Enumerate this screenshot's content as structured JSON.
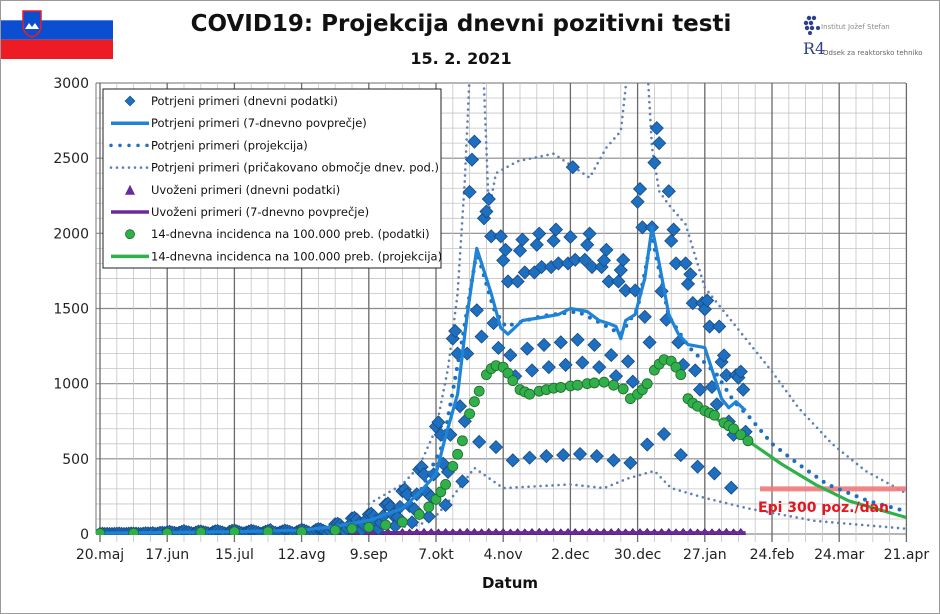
{
  "header": {
    "title": "COVID19: Projekcija dnevni pozitivni testi",
    "subtitle": "15. 2. 2021",
    "logo_institute": "Institut Jožef Stefan",
    "logo_dept_mark": "R4",
    "logo_dept": "Odsek za reaktorsko tehniko"
  },
  "colors": {
    "confirmed": "#1f6fc0",
    "confirmed_edge": "#174a80",
    "avg_line": "#1f83d6",
    "band": "#5f7fb8",
    "imported": "#6a2b9a",
    "incidence": "#2fb04a",
    "incidence_edge": "#1e6a2a",
    "epi_line": "#f07a7a",
    "epi_text": "#e8141e"
  },
  "chart_data": {
    "type": "line",
    "title": "COVID19: Projekcija dnevni pozitivni testi",
    "subtitle": "15. 2. 2021",
    "xlabel": "Datum",
    "ylabel": "",
    "xlim": [
      "2020-05-18",
      "2021-04-21"
    ],
    "ylim": [
      0,
      3000
    ],
    "yticks": [
      "0",
      "500",
      "1000",
      "1500",
      "2000",
      "2500",
      "3000"
    ],
    "xticks": [
      "20.maj",
      "17.jun",
      "15.jul",
      "12.avg",
      "9.sep",
      "7.okt",
      "4.nov",
      "2.dec",
      "30.dec",
      "27.jan",
      "24.feb",
      "24.mar",
      "21.apr"
    ],
    "grid": true,
    "legend_position": "top-left",
    "legend": [
      "Potrjeni primeri (dnevni podatki)",
      "Potrjeni primeri (7-dnevno povprečje)",
      "Potrjeni primeri (projekcija)",
      "Potrjeni primeri (pričakovano območje dnev. pod.)",
      "Uvoženi primeri (dnevni podatki)",
      "Uvoženi primeri (7-dnevno povprečje)",
      "14-dnevna incidenca na 100.000 preb. (podatki)",
      "14-dnevna incidenca na 100.000 preb. (projekcija)"
    ],
    "annotation": {
      "text": "Epi 300 poz./dan",
      "value": 300,
      "from": "2021-02-19",
      "to": "2021-04-21"
    },
    "confirmed_daily": {
      "start": "2020-05-20",
      "values": [
        1,
        2,
        0,
        1,
        0,
        0,
        1,
        2,
        3,
        1,
        0,
        1,
        2,
        4,
        3,
        2,
        1,
        0,
        2,
        5,
        4,
        3,
        6,
        1,
        3,
        8,
        9,
        6,
        12,
        15,
        10,
        8,
        3,
        9,
        14,
        20,
        13,
        11,
        6,
        2,
        10,
        16,
        17,
        12,
        9,
        5,
        1,
        12,
        18,
        20,
        14,
        10,
        4,
        2,
        15,
        21,
        24,
        18,
        12,
        6,
        3,
        10,
        16,
        22,
        17,
        14,
        8,
        2,
        8,
        15,
        20,
        26,
        12,
        9,
        3,
        11,
        17,
        23,
        19,
        14,
        7,
        3,
        13,
        20,
        28,
        24,
        17,
        10,
        4,
        16,
        27,
        33,
        30,
        22,
        14,
        5,
        20,
        38,
        65,
        68,
        60,
        43,
        18,
        38,
        60,
        104,
        108,
        96,
        68,
        28,
        60,
        96,
        130,
        135,
        120,
        85,
        35,
        75,
        120,
        195,
        203,
        180,
        128,
        53,
        113,
        180,
        286,
        297,
        264,
        187,
        77,
        165,
        264,
        429,
        446,
        396,
        281,
        116,
        248,
        396,
        715,
        743,
        660,
        468,
        193,
        413,
        660,
        1300,
        1350,
        1200,
        850,
        350,
        750,
        1200,
        2275,
        2490,
        2610,
        1488,
        613,
        1313,
        2100,
        2145,
        2228,
        1980,
        1403,
        578,
        1238,
        1980,
        1820,
        1890,
        1680,
        1190,
        490,
        1050,
        1680,
        1885,
        1958,
        1740,
        1233,
        508,
        1088,
        1740,
        1924,
        1998,
        1776,
        1258,
        518,
        1110,
        1776,
        1950,
        2025,
        1800,
        1275,
        525,
        1125,
        1800,
        1976,
        2440,
        1824,
        1292,
        532,
        1140,
        1824,
        1924,
        1998,
        1776,
        1258,
        518,
        1110,
        1776,
        1820,
        1890,
        1680,
        1190,
        490,
        1050,
        1680,
        1755,
        1823,
        1620,
        1148,
        473,
        1013,
        1620,
        2210,
        2295,
        2040,
        1445,
        595,
        1275,
        2040,
        2470,
        2700,
        2600,
        1615,
        665,
        1425,
        2280,
        1950,
        2025,
        1800,
        1275,
        525,
        1125,
        1800,
        1664,
        1728,
        1536,
        1088,
        448,
        960,
        1536,
        1495,
        1553,
        1380,
        978,
        403,
        863,
        1380,
        1144,
        1188,
        1056,
        748,
        308,
        660,
        1056,
        1040,
        1080,
        960,
        680
      ]
    },
    "confirmed_7day_avg": [
      [
        "2020-05-20",
        5
      ],
      [
        "2020-07-15",
        15
      ],
      [
        "2020-08-12",
        25
      ],
      [
        "2020-08-26",
        50
      ],
      [
        "2020-09-09",
        90
      ],
      [
        "2020-09-23",
        170
      ],
      [
        "2020-10-01",
        290
      ],
      [
        "2020-10-07",
        400
      ],
      [
        "2020-10-11",
        650
      ],
      [
        "2020-10-16",
        930
      ],
      [
        "2020-10-20",
        1460
      ],
      [
        "2020-10-24",
        1900
      ],
      [
        "2020-10-27",
        1750
      ],
      [
        "2020-10-30",
        1600
      ],
      [
        "2020-11-03",
        1370
      ],
      [
        "2020-11-06",
        1330
      ],
      [
        "2020-11-12",
        1420
      ],
      [
        "2020-11-20",
        1440
      ],
      [
        "2020-11-27",
        1460
      ],
      [
        "2020-12-02",
        1500
      ],
      [
        "2020-12-09",
        1480
      ],
      [
        "2020-12-14",
        1420
      ],
      [
        "2020-12-18",
        1400
      ],
      [
        "2020-12-21",
        1380
      ],
      [
        "2020-12-23",
        1300
      ],
      [
        "2020-12-25",
        1420
      ],
      [
        "2020-12-29",
        1460
      ],
      [
        "2021-01-02",
        1700
      ],
      [
        "2021-01-05",
        2040
      ],
      [
        "2021-01-08",
        1800
      ],
      [
        "2021-01-12",
        1460
      ],
      [
        "2021-01-16",
        1330
      ],
      [
        "2021-01-20",
        1260
      ],
      [
        "2021-01-27",
        1240
      ],
      [
        "2021-02-03",
        900
      ],
      [
        "2021-02-06",
        840
      ],
      [
        "2021-02-09",
        880
      ],
      [
        "2021-02-13",
        820
      ]
    ],
    "confirmed_projection": [
      [
        "2020-10-01",
        300
      ],
      [
        "2020-10-10",
        600
      ],
      [
        "2020-10-18",
        1300
      ],
      [
        "2020-10-24",
        1880
      ],
      [
        "2020-10-31",
        1500
      ],
      [
        "2020-11-05",
        1380
      ],
      [
        "2020-11-20",
        1450
      ],
      [
        "2020-12-05",
        1480
      ],
      [
        "2020-12-15",
        1400
      ],
      [
        "2020-12-23",
        1330
      ],
      [
        "2020-12-30",
        1500
      ],
      [
        "2021-01-05",
        1980
      ],
      [
        "2021-01-12",
        1450
      ],
      [
        "2021-01-20",
        1250
      ],
      [
        "2021-02-01",
        1060
      ],
      [
        "2021-02-08",
        885
      ],
      [
        "2021-02-15",
        770
      ],
      [
        "2021-02-24",
        600
      ],
      [
        "2021-03-07",
        465
      ],
      [
        "2021-03-19",
        330
      ],
      [
        "2021-04-05",
        220
      ],
      [
        "2021-04-21",
        150
      ]
    ],
    "expected_range_upper": [
      [
        "2020-09-09",
        200
      ],
      [
        "2020-09-23",
        330
      ],
      [
        "2020-09-30",
        450
      ],
      [
        "2020-10-07",
        700
      ],
      [
        "2020-10-12",
        1100
      ],
      [
        "2020-10-16",
        1600
      ],
      [
        "2020-10-19",
        2350
      ],
      [
        "2020-10-22",
        3400
      ],
      [
        "2020-10-26",
        3400
      ],
      [
        "2020-10-29",
        2150
      ],
      [
        "2020-11-01",
        2400
      ],
      [
        "2020-11-10",
        2480
      ],
      [
        "2020-11-25",
        2530
      ],
      [
        "2020-12-10",
        2370
      ],
      [
        "2020-12-17",
        2570
      ],
      [
        "2020-12-23",
        2680
      ],
      [
        "2020-12-28",
        3400
      ],
      [
        "2021-01-02",
        3400
      ],
      [
        "2021-01-05",
        2570
      ],
      [
        "2021-01-08",
        2280
      ],
      [
        "2021-01-12",
        2190
      ],
      [
        "2021-01-19",
        2060
      ],
      [
        "2021-01-27",
        1640
      ],
      [
        "2021-02-04",
        1480
      ],
      [
        "2021-02-24",
        1080
      ],
      [
        "2021-03-07",
        840
      ],
      [
        "2021-03-21",
        600
      ],
      [
        "2021-04-04",
        420
      ],
      [
        "2021-04-21",
        270
      ]
    ],
    "expected_range_lower": [
      [
        "2020-09-09",
        20
      ],
      [
        "2020-09-30",
        60
      ],
      [
        "2020-10-07",
        120
      ],
      [
        "2020-10-14",
        250
      ],
      [
        "2020-10-23",
        440
      ],
      [
        "2020-11-04",
        305
      ],
      [
        "2020-12-02",
        330
      ],
      [
        "2020-12-16",
        305
      ],
      [
        "2020-12-26",
        370
      ],
      [
        "2021-01-06",
        420
      ],
      [
        "2021-01-13",
        305
      ],
      [
        "2021-01-27",
        240
      ],
      [
        "2021-02-14",
        170
      ],
      [
        "2021-03-14",
        87
      ],
      [
        "2021-04-21",
        35
      ]
    ],
    "imported_daily": {
      "start": "2020-05-20",
      "step_days": 3,
      "values": [
        2,
        4,
        3,
        5,
        2,
        6,
        4,
        8,
        5,
        9,
        12,
        10,
        14,
        11,
        16,
        13,
        18,
        15,
        20,
        17,
        22,
        14,
        19,
        12,
        17,
        10,
        15,
        9,
        13,
        8,
        12,
        9,
        11,
        8,
        12,
        10,
        9,
        7,
        11,
        8,
        10,
        6,
        9,
        7,
        8,
        11,
        9,
        7,
        10,
        8,
        9,
        12,
        10,
        8,
        11,
        9,
        10,
        7,
        9,
        8,
        10,
        12,
        9,
        11,
        8,
        10,
        9,
        7,
        11,
        8,
        10,
        9,
        12,
        8,
        10,
        9,
        11,
        7,
        9,
        10,
        8,
        11,
        9,
        7,
        10,
        8,
        9,
        11,
        8,
        10
      ]
    },
    "imported_7day_avg": [
      [
        "2020-05-20",
        3
      ],
      [
        "2020-07-15",
        14
      ],
      [
        "2020-08-12",
        10
      ],
      [
        "2020-10-07",
        9
      ],
      [
        "2021-02-13",
        9
      ]
    ],
    "incidence_data": [
      [
        "2020-05-20",
        3
      ],
      [
        "2020-06-03",
        4
      ],
      [
        "2020-06-17",
        5
      ],
      [
        "2020-07-01",
        12
      ],
      [
        "2020-07-15",
        15
      ],
      [
        "2020-07-29",
        15
      ],
      [
        "2020-08-12",
        15
      ],
      [
        "2020-08-26",
        25
      ],
      [
        "2020-09-02",
        35
      ],
      [
        "2020-09-09",
        45
      ],
      [
        "2020-09-16",
        60
      ],
      [
        "2020-09-23",
        80
      ],
      [
        "2020-09-30",
        130
      ],
      [
        "2020-10-04",
        180
      ],
      [
        "2020-10-07",
        230
      ],
      [
        "2020-10-09",
        280
      ],
      [
        "2020-10-11",
        330
      ],
      [
        "2020-10-14",
        450
      ],
      [
        "2020-10-16",
        530
      ],
      [
        "2020-10-18",
        620
      ],
      [
        "2020-10-21",
        800
      ],
      [
        "2020-10-23",
        880
      ],
      [
        "2020-10-25",
        950
      ],
      [
        "2020-10-28",
        1060
      ],
      [
        "2020-10-30",
        1100
      ],
      [
        "2020-11-01",
        1120
      ],
      [
        "2020-11-04",
        1110
      ],
      [
        "2020-11-06",
        1070
      ],
      [
        "2020-11-08",
        1020
      ],
      [
        "2020-11-11",
        960
      ],
      [
        "2020-11-13",
        945
      ],
      [
        "2020-11-15",
        930
      ],
      [
        "2020-11-19",
        950
      ],
      [
        "2020-11-22",
        960
      ],
      [
        "2020-11-25",
        970
      ],
      [
        "2020-11-28",
        975
      ],
      [
        "2020-12-02",
        985
      ],
      [
        "2020-12-05",
        990
      ],
      [
        "2020-12-09",
        1000
      ],
      [
        "2020-12-12",
        1005
      ],
      [
        "2020-12-16",
        1010
      ],
      [
        "2020-12-20",
        990
      ],
      [
        "2020-12-24",
        965
      ],
      [
        "2020-12-27",
        900
      ],
      [
        "2020-12-30",
        930
      ],
      [
        "2021-01-01",
        960
      ],
      [
        "2021-01-03",
        1000
      ],
      [
        "2021-01-06",
        1090
      ],
      [
        "2021-01-08",
        1130
      ],
      [
        "2021-01-10",
        1160
      ],
      [
        "2021-01-13",
        1150
      ],
      [
        "2021-01-15",
        1110
      ],
      [
        "2021-01-17",
        1060
      ],
      [
        "2021-01-20",
        900
      ],
      [
        "2021-01-22",
        870
      ],
      [
        "2021-01-24",
        850
      ],
      [
        "2021-01-27",
        820
      ],
      [
        "2021-01-29",
        805
      ],
      [
        "2021-01-31",
        790
      ],
      [
        "2021-02-04",
        740
      ],
      [
        "2021-02-06",
        720
      ],
      [
        "2021-02-08",
        700
      ],
      [
        "2021-02-11",
        660
      ],
      [
        "2021-02-14",
        620
      ]
    ],
    "incidence_projection": [
      [
        "2021-01-27",
        820
      ],
      [
        "2021-02-14",
        620
      ],
      [
        "2021-02-28",
        465
      ],
      [
        "2021-03-14",
        330
      ],
      [
        "2021-03-28",
        220
      ],
      [
        "2021-04-21",
        110
      ]
    ]
  }
}
